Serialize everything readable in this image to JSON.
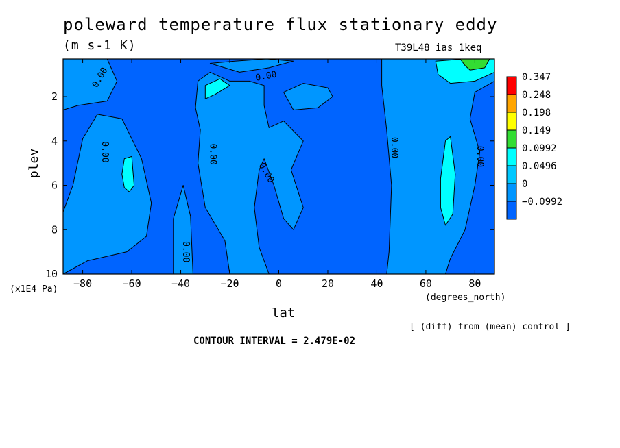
{
  "chart_data": {
    "type": "heatmap",
    "title": "poleward temperature flux stationary eddy",
    "units": "(m s-1 K)",
    "run_label": "T39L48_ias_1keq",
    "xlabel": "lat",
    "x_unit": "(degrees_north)",
    "ylabel": "plev",
    "y_unit": "(x1E4 Pa)",
    "note": "[ (diff) from (mean) control ]",
    "contour_interval_text": "CONTOUR INTERVAL = 2.479E-02",
    "xlim": [
      -88,
      88
    ],
    "ylim": [
      0.3,
      10
    ],
    "y_inverted": true,
    "x_ticks": [
      -80,
      -60,
      -40,
      -20,
      0,
      20,
      40,
      60,
      80
    ],
    "x_tick_labels": [
      "−80",
      "−60",
      "−40",
      "−20",
      "0",
      "20",
      "40",
      "60",
      "80"
    ],
    "y_ticks": [
      2,
      4,
      6,
      8,
      10
    ],
    "y_tick_labels": [
      "2",
      "4",
      "6",
      "8",
      "10"
    ],
    "contour_label": "0.00",
    "colorbar": {
      "levels": [
        "0.347",
        "0.248",
        "0.198",
        "0.149",
        "0.0992",
        "0.0496",
        "0",
        "−0.0992"
      ],
      "colors": [
        "#ff0000",
        "#ffa500",
        "#ffff00",
        "#33dd33",
        "#00ffff",
        "#00c8ff",
        "#0096ff",
        "#0064ff"
      ]
    },
    "regions": [
      {
        "level": "0 to 0.0496",
        "color": "#0096ff",
        "polygon": [
          [
            -88,
            0.3
          ],
          [
            -70,
            0.3
          ],
          [
            -66,
            1.3
          ],
          [
            -70,
            2.2
          ],
          [
            -82,
            2.4
          ],
          [
            -88,
            2.6
          ]
        ]
      },
      {
        "level": "0 to 0.0496",
        "color": "#0096ff",
        "polygon": [
          [
            -88,
            7.2
          ],
          [
            -84,
            6.0
          ],
          [
            -80,
            3.9
          ],
          [
            -74,
            2.8
          ],
          [
            -64,
            3.0
          ],
          [
            -56,
            4.8
          ],
          [
            -52,
            6.8
          ],
          [
            -54,
            8.3
          ],
          [
            -62,
            9.0
          ],
          [
            -78,
            9.4
          ],
          [
            -88,
            10
          ]
        ]
      },
      {
        "level": "0 to 0.0496",
        "color": "#0096ff",
        "polygon": [
          [
            -43,
            10
          ],
          [
            -43,
            7.5
          ],
          [
            -39,
            6.0
          ],
          [
            -36,
            7.4
          ],
          [
            -35,
            10
          ]
        ]
      },
      {
        "level": "0 to 0.0496",
        "color": "#0096ff",
        "polygon": [
          [
            -33,
            1.3
          ],
          [
            -28,
            0.9
          ],
          [
            -20,
            1.3
          ],
          [
            -12,
            1.3
          ],
          [
            -6,
            1.5
          ],
          [
            -6,
            2.4
          ],
          [
            -4,
            3.4
          ],
          [
            2,
            3.1
          ],
          [
            10,
            4.0
          ],
          [
            5,
            5.3
          ],
          [
            10,
            7.0
          ],
          [
            6,
            8.0
          ],
          [
            2,
            7.5
          ],
          [
            -2,
            6.0
          ],
          [
            -6,
            4.8
          ],
          [
            -8,
            5.3
          ],
          [
            -10,
            7.0
          ],
          [
            -8,
            8.8
          ],
          [
            -4,
            10
          ],
          [
            -20,
            10
          ],
          [
            -22,
            8.5
          ],
          [
            -30,
            7.0
          ],
          [
            -33,
            5.0
          ],
          [
            -32,
            3.5
          ],
          [
            -34,
            2.5
          ]
        ]
      },
      {
        "level": "0 to 0.0496",
        "color": "#0096ff",
        "polygon": [
          [
            -28,
            0.5
          ],
          [
            -18,
            0.4
          ],
          [
            -5,
            0.3
          ],
          [
            6,
            0.4
          ],
          [
            -4,
            0.7
          ],
          [
            -16,
            0.9
          ]
        ]
      },
      {
        "level": "0 to 0.0496",
        "color": "#0096ff",
        "polygon": [
          [
            2,
            1.8
          ],
          [
            10,
            1.4
          ],
          [
            20,
            1.6
          ],
          [
            22,
            2.0
          ],
          [
            16,
            2.5
          ],
          [
            6,
            2.6
          ]
        ]
      },
      {
        "level": "0 to 0.0496",
        "color": "#0096ff",
        "polygon": [
          [
            42,
            0.3
          ],
          [
            88,
            0.3
          ],
          [
            88,
            1.3
          ],
          [
            80,
            1.8
          ],
          [
            78,
            3.0
          ],
          [
            82,
            4.5
          ],
          [
            80,
            6.0
          ],
          [
            76,
            8.0
          ],
          [
            70,
            9.3
          ],
          [
            68,
            10
          ],
          [
            44,
            10
          ],
          [
            45,
            9.0
          ],
          [
            46,
            6.0
          ],
          [
            44,
            3.5
          ],
          [
            42,
            1.5
          ]
        ]
      },
      {
        "level": "0.0496 to 0.0992",
        "color": "#00ffff",
        "polygon": [
          [
            -30,
            1.5
          ],
          [
            -24,
            1.2
          ],
          [
            -20,
            1.5
          ],
          [
            -26,
            1.9
          ],
          [
            -30,
            2.1
          ]
        ]
      },
      {
        "level": "0.0496 to 0.0992",
        "color": "#00ffff",
        "polygon": [
          [
            66,
            5.7
          ],
          [
            68,
            4.0
          ],
          [
            70,
            3.8
          ],
          [
            72,
            5.5
          ],
          [
            71,
            7.3
          ],
          [
            68,
            7.8
          ],
          [
            66,
            7.0
          ]
        ]
      },
      {
        "level": "0.0496 to 0.0992",
        "color": "#00ffff",
        "polygon": [
          [
            -64,
            5.5
          ],
          [
            -63,
            4.8
          ],
          [
            -60,
            4.7
          ],
          [
            -59,
            6.0
          ],
          [
            -61,
            6.3
          ],
          [
            -63,
            6.1
          ]
        ]
      },
      {
        "level": "0.0496 to 0.0992",
        "color": "#00ffff",
        "polygon": [
          [
            64,
            0.4
          ],
          [
            76,
            0.3
          ],
          [
            88,
            0.3
          ],
          [
            88,
            0.9
          ],
          [
            80,
            1.3
          ],
          [
            70,
            1.4
          ],
          [
            65,
            1.0
          ]
        ]
      },
      {
        "level": "0.0992 to 0.149",
        "color": "#33dd33",
        "polygon": [
          [
            74,
            0.3
          ],
          [
            86,
            0.3
          ],
          [
            84,
            0.7
          ],
          [
            78,
            0.8
          ],
          [
            76,
            0.6
          ]
        ]
      }
    ]
  }
}
